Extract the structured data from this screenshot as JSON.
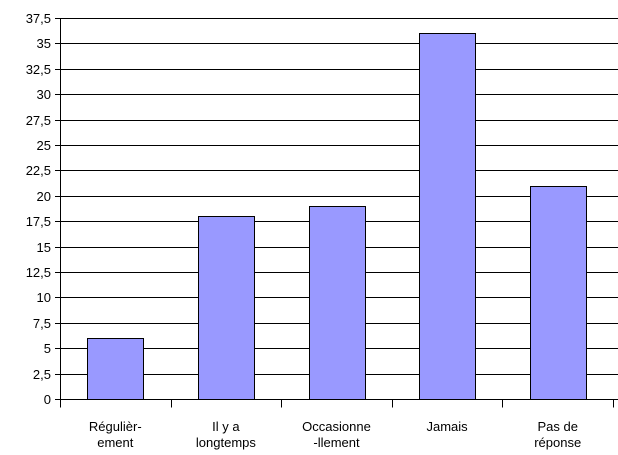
{
  "chart_data": {
    "type": "bar",
    "categories": [
      [
        "Régulièr-",
        "ement"
      ],
      [
        "Il y a",
        "longtemps"
      ],
      [
        "Occasionne",
        "-llement"
      ],
      [
        "Jamais"
      ],
      [
        "Pas de",
        "réponse"
      ]
    ],
    "values": [
      6,
      18,
      19,
      36,
      21
    ],
    "ylim": [
      0,
      37.5
    ],
    "y_ticks": [
      "0",
      "2,5",
      "5",
      "7,5",
      "10",
      "12,5",
      "15",
      "17,5",
      "20",
      "22,5",
      "25",
      "27,5",
      "30",
      "32,5",
      "35",
      "37,5"
    ],
    "y_tick_values": [
      0,
      2.5,
      5,
      7.5,
      10,
      12.5,
      15,
      17.5,
      20,
      22.5,
      25,
      27.5,
      30,
      32.5,
      35,
      37.5
    ],
    "grid": true,
    "legend": "none",
    "bar_color": "#9999ff",
    "title": "",
    "xlabel": "",
    "ylabel": ""
  }
}
